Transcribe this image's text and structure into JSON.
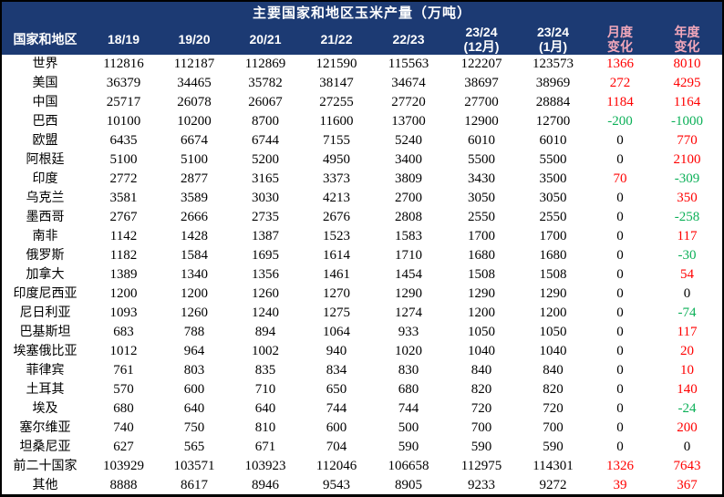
{
  "colors": {
    "header_bg": "#1c3a73",
    "header_text": "#ffffff",
    "change_header_text": "#f2a7ba",
    "positive": "#ff0000",
    "negative": "#0cb058",
    "neutral": "#000000",
    "body_bg": "#ffffff",
    "border": "#000000"
  },
  "chart_data": {
    "type": "table",
    "title": "主要国家和地区玉米产量（万吨）",
    "unit": "万吨",
    "columns": [
      "国家和地区",
      "18/19",
      "19/20",
      "20/21",
      "21/22",
      "22/23",
      "23/24\n(12月)",
      "23/24\n(1月)",
      "月度\n变化",
      "年度\n变化"
    ],
    "rows": [
      {
        "region": "世界",
        "values": [
          112816,
          112187,
          112869,
          121590,
          115563,
          122207,
          123573
        ],
        "monthly_change": 1366,
        "yearly_change": 8010
      },
      {
        "region": "美国",
        "values": [
          36379,
          34465,
          35782,
          38147,
          34674,
          38697,
          38969
        ],
        "monthly_change": 272,
        "yearly_change": 4295
      },
      {
        "region": "中国",
        "values": [
          25717,
          26078,
          26067,
          27255,
          27720,
          27700,
          28884
        ],
        "monthly_change": 1184,
        "yearly_change": 1164
      },
      {
        "region": "巴西",
        "values": [
          10100,
          10200,
          8700,
          11600,
          13700,
          12900,
          12700
        ],
        "monthly_change": -200,
        "yearly_change": -1000
      },
      {
        "region": "欧盟",
        "values": [
          6435,
          6674,
          6744,
          7155,
          5240,
          6010,
          6010
        ],
        "monthly_change": 0,
        "yearly_change": 770
      },
      {
        "region": "阿根廷",
        "values": [
          5100,
          5100,
          5200,
          4950,
          3400,
          5500,
          5500
        ],
        "monthly_change": 0,
        "yearly_change": 2100
      },
      {
        "region": "印度",
        "values": [
          2772,
          2877,
          3165,
          3373,
          3809,
          3430,
          3500
        ],
        "monthly_change": 70,
        "yearly_change": -309
      },
      {
        "region": "乌克兰",
        "values": [
          3581,
          3589,
          3030,
          4213,
          2700,
          3050,
          3050
        ],
        "monthly_change": 0,
        "yearly_change": 350
      },
      {
        "region": "墨西哥",
        "values": [
          2767,
          2666,
          2735,
          2676,
          2808,
          2550,
          2550
        ],
        "monthly_change": 0,
        "yearly_change": -258
      },
      {
        "region": "南非",
        "values": [
          1142,
          1428,
          1387,
          1523,
          1583,
          1700,
          1700
        ],
        "monthly_change": 0,
        "yearly_change": 117
      },
      {
        "region": "俄罗斯",
        "values": [
          1182,
          1584,
          1695,
          1614,
          1710,
          1680,
          1680
        ],
        "monthly_change": 0,
        "yearly_change": -30
      },
      {
        "region": "加拿大",
        "values": [
          1389,
          1340,
          1356,
          1461,
          1454,
          1508,
          1508
        ],
        "monthly_change": 0,
        "yearly_change": 54
      },
      {
        "region": "印度尼西亚",
        "values": [
          1200,
          1200,
          1260,
          1270,
          1290,
          1290,
          1290
        ],
        "monthly_change": 0,
        "yearly_change": 0
      },
      {
        "region": "尼日利亚",
        "values": [
          1093,
          1260,
          1240,
          1275,
          1274,
          1200,
          1200
        ],
        "monthly_change": 0,
        "yearly_change": -74
      },
      {
        "region": "巴基斯坦",
        "values": [
          683,
          788,
          894,
          1064,
          933,
          1050,
          1050
        ],
        "monthly_change": 0,
        "yearly_change": 117
      },
      {
        "region": "埃塞俄比亚",
        "values": [
          1012,
          964,
          1002,
          940,
          1020,
          1040,
          1040
        ],
        "monthly_change": 0,
        "yearly_change": 20
      },
      {
        "region": "菲律宾",
        "values": [
          761,
          803,
          835,
          834,
          830,
          840,
          840
        ],
        "monthly_change": 0,
        "yearly_change": 10
      },
      {
        "region": "土耳其",
        "values": [
          570,
          600,
          710,
          650,
          680,
          820,
          820
        ],
        "monthly_change": 0,
        "yearly_change": 140
      },
      {
        "region": "埃及",
        "values": [
          680,
          640,
          640,
          744,
          744,
          720,
          720
        ],
        "monthly_change": 0,
        "yearly_change": -24
      },
      {
        "region": "塞尔维亚",
        "values": [
          740,
          750,
          810,
          600,
          500,
          700,
          700
        ],
        "monthly_change": 0,
        "yearly_change": 200
      },
      {
        "region": "坦桑尼亚",
        "values": [
          627,
          565,
          671,
          704,
          590,
          590,
          590
        ],
        "monthly_change": 0,
        "yearly_change": 0
      },
      {
        "region": "前二十国家",
        "values": [
          103929,
          103571,
          103923,
          112046,
          106658,
          112975,
          114301
        ],
        "monthly_change": 1326,
        "yearly_change": 7643
      },
      {
        "region": "其他",
        "values": [
          8888,
          8617,
          8946,
          9543,
          8905,
          9233,
          9272
        ],
        "monthly_change": 39,
        "yearly_change": 367
      }
    ]
  }
}
